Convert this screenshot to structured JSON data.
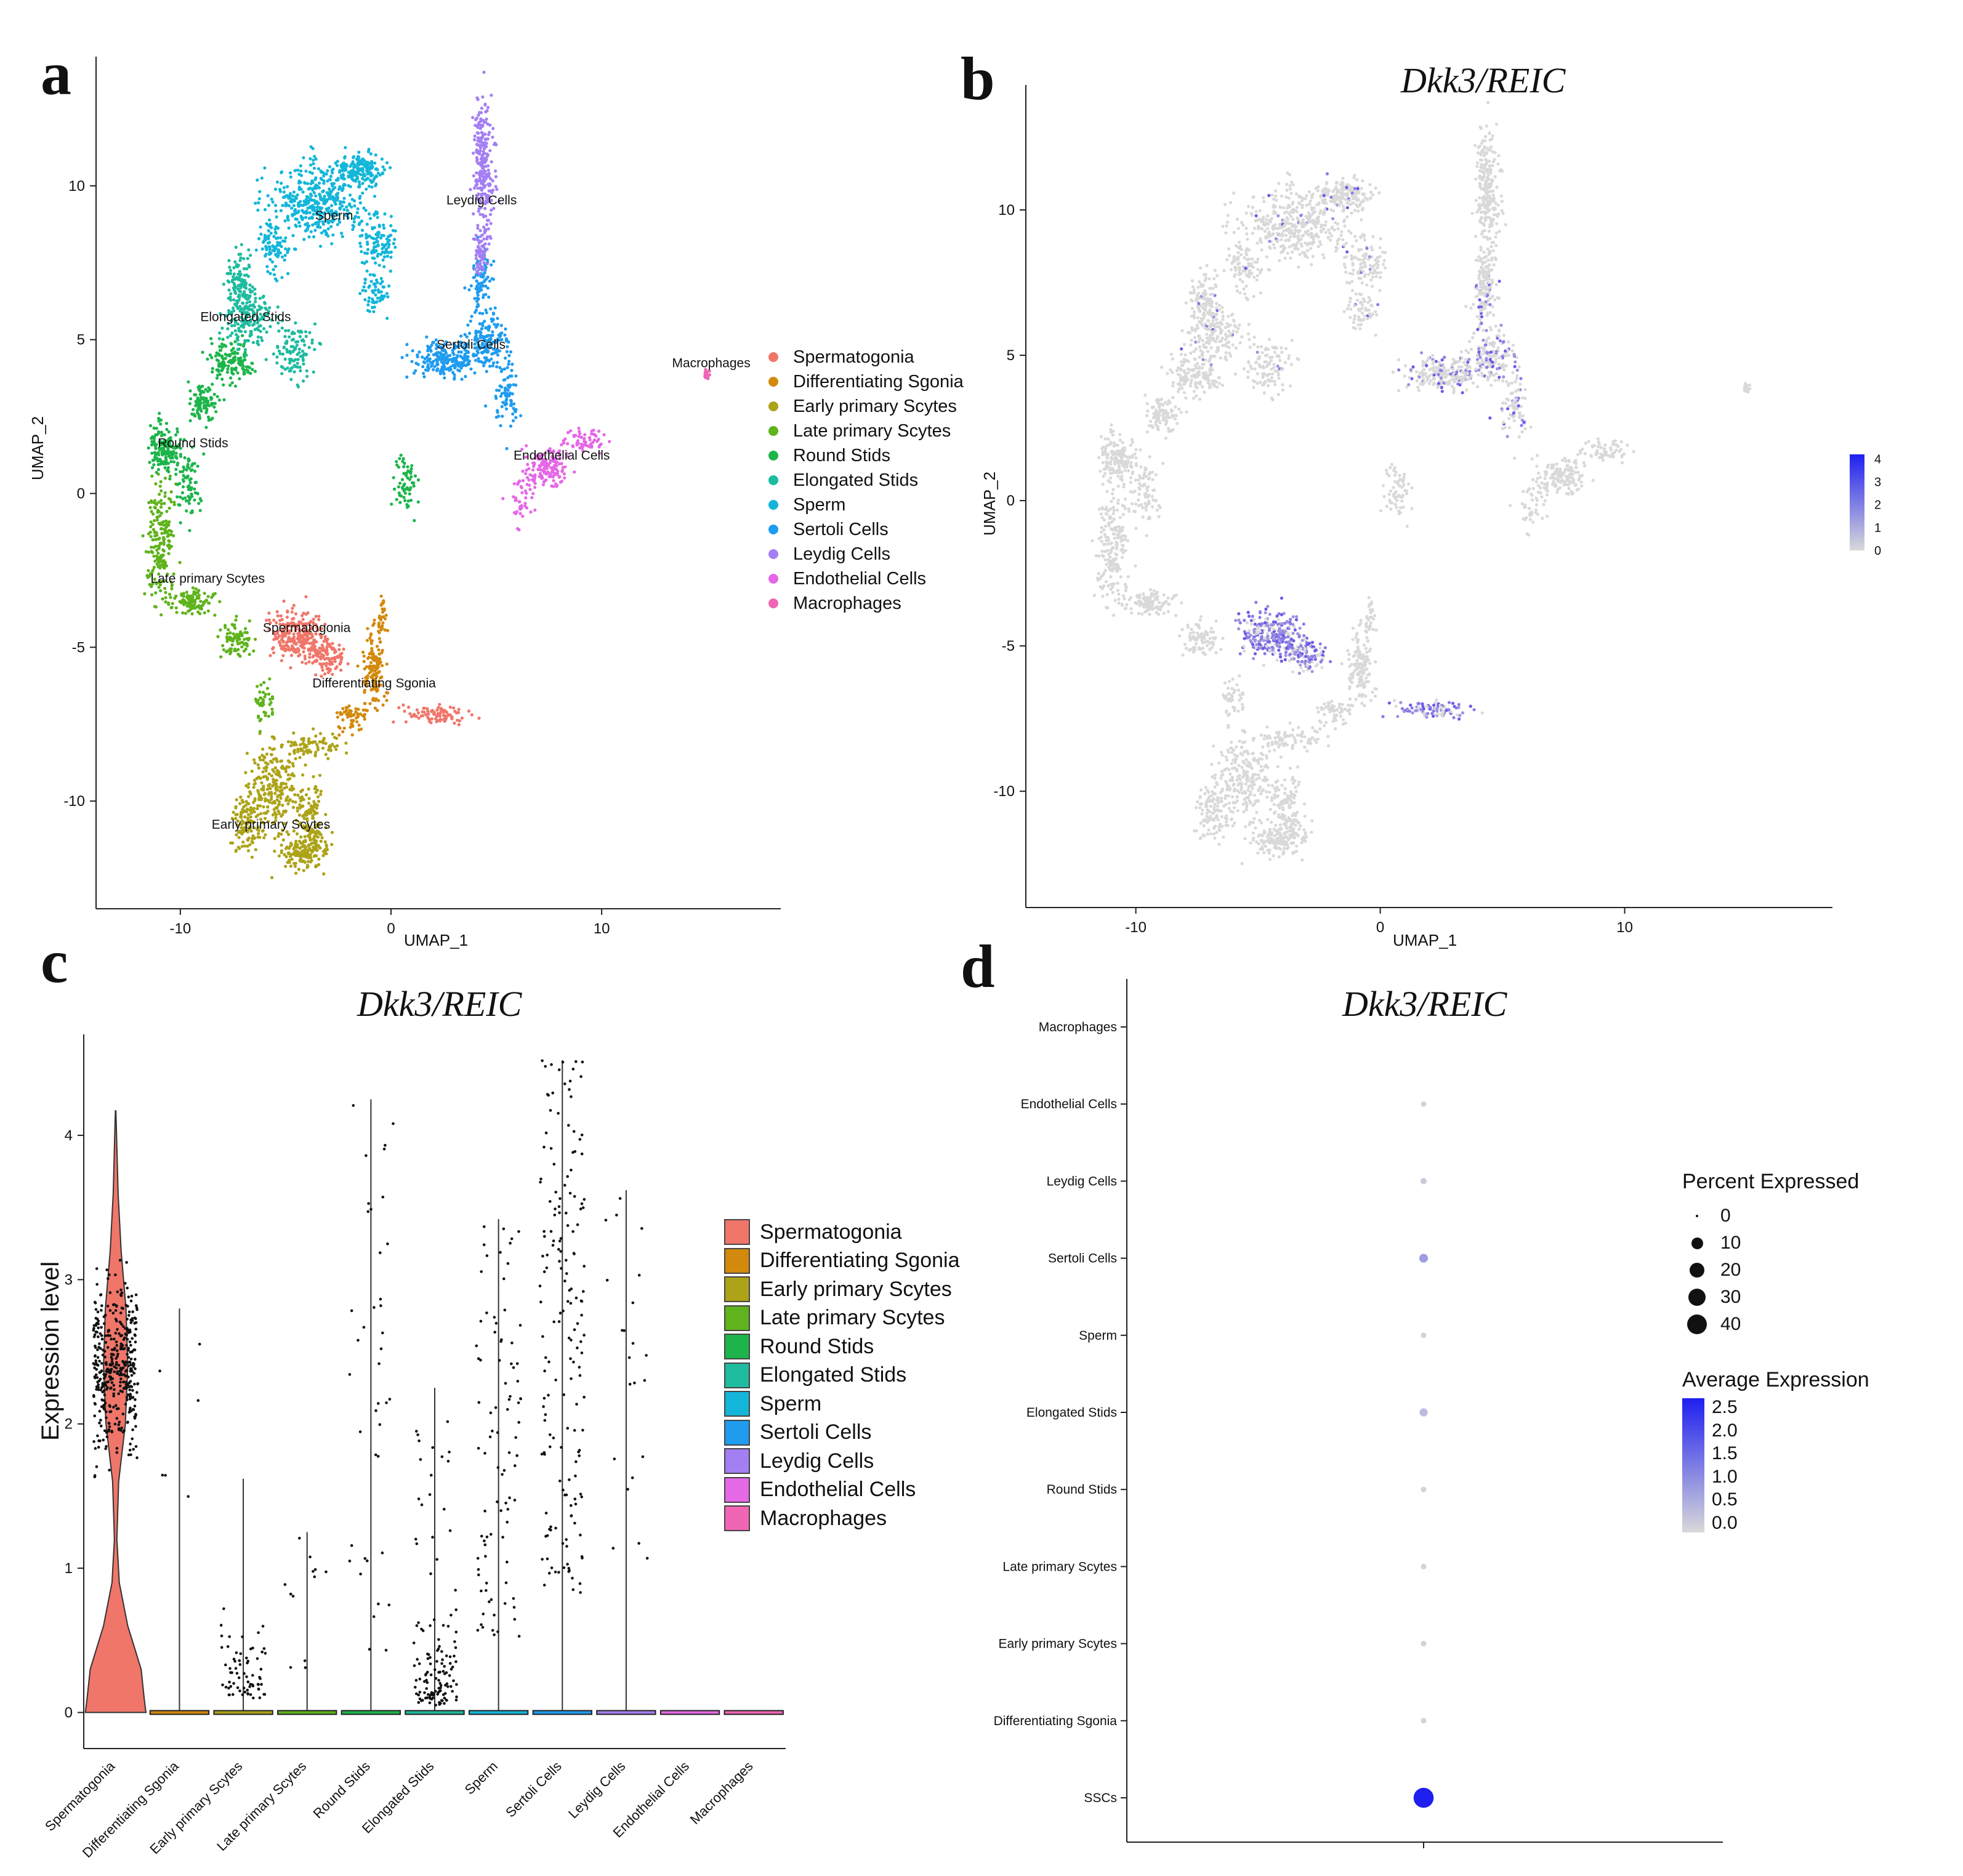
{
  "figure": {
    "panels": {
      "a": {
        "letter": "a"
      },
      "b": {
        "letter": "b",
        "title": "Dkk3/REIC"
      },
      "c": {
        "letter": "c",
        "title": "Dkk3/REIC"
      },
      "d": {
        "letter": "d",
        "title": "Dkk3/REIC"
      }
    }
  },
  "colors": {
    "Spermatogonia": "#F0766A",
    "Differentiating Sgonia": "#D3890C",
    "Early primary Scytes": "#ACA318",
    "Late primary Scytes": "#5FB31C",
    "Round Stids": "#1DB54B",
    "Elongated Stids": "#1EBB9F",
    "Sperm": "#13B6D9",
    "Sertoli Cells": "#1F9CEF",
    "Leydig Cells": "#A47FF3",
    "Endothelial Cells": "#E568E6",
    "Macrophages": "#F065B4",
    "expr_low": "#D9D9D9",
    "expr_high": "#1F1FF0"
  },
  "chart_data": [
    {
      "panel": "a",
      "type": "scatter",
      "title": "",
      "xlabel": "UMAP_1",
      "ylabel": "UMAP_2",
      "xlim": [
        -14,
        18.5
      ],
      "ylim": [
        -13.5,
        14.2
      ],
      "xticks": [
        -10,
        0,
        10
      ],
      "yticks": [
        -10,
        -5,
        0,
        5,
        10
      ],
      "cluster_labels": [
        {
          "label": "Spermatogonia",
          "x": -4,
          "y": -4.5
        },
        {
          "label": "Differentiating Sgonia",
          "x": -0.8,
          "y": -6.3
        },
        {
          "label": "Early primary Scytes",
          "x": -5.7,
          "y": -10.9
        },
        {
          "label": "Late primary Scytes",
          "x": -8.7,
          "y": -2.9
        },
        {
          "label": "Round Stids",
          "x": -9.4,
          "y": 1.5
        },
        {
          "label": "Elongated Stids",
          "x": -6.9,
          "y": 5.6
        },
        {
          "label": "Sperm",
          "x": -2.7,
          "y": 8.9
        },
        {
          "label": "Sertoli Cells",
          "x": 3.8,
          "y": 4.7
        },
        {
          "label": "Leydig Cells",
          "x": 4.3,
          "y": 9.4
        },
        {
          "label": "Endothelial Cells",
          "x": 8.1,
          "y": 1.1
        },
        {
          "label": "Macrophages",
          "x": 15.2,
          "y": 4.1
        }
      ],
      "legend": [
        "Spermatogonia",
        "Differentiating Sgonia",
        "Early primary Scytes",
        "Late primary Scytes",
        "Round Stids",
        "Elongated Stids",
        "Sperm",
        "Sertoli Cells",
        "Leydig Cells",
        "Endothelial Cells",
        "Macrophages"
      ]
    },
    {
      "panel": "b",
      "type": "scatter",
      "title": "Dkk3/REIC",
      "xlabel": "UMAP_1",
      "ylabel": "UMAP_2",
      "xlim": [
        -14.5,
        18.5
      ],
      "ylim": [
        -14,
        14.3
      ],
      "xticks": [
        -10,
        0,
        10
      ],
      "yticks": [
        -10,
        -5,
        0,
        5,
        10
      ],
      "colorbar": {
        "ticks": [
          0,
          1,
          2,
          3,
          4
        ],
        "min": 0,
        "max": 4.2
      }
    },
    {
      "panel": "c",
      "type": "violin",
      "title": "Dkk3/REIC",
      "xlabel": "",
      "ylabel": "Expression level",
      "ylim": [
        -0.25,
        4.7
      ],
      "yticks": [
        0,
        1,
        2,
        3,
        4
      ],
      "categories": [
        "Spermatogonia",
        "Differentiating Sgonia",
        "Early primary Scytes",
        "Late primary Scytes",
        "Round Stids",
        "Elongated Stids",
        "Sperm",
        "Sertoli Cells",
        "Leydig Cells",
        "Endothelial Cells",
        "Macrophages"
      ],
      "max_values": [
        4.17,
        2.8,
        1.62,
        1.25,
        4.25,
        2.25,
        3.42,
        4.52,
        3.62,
        0,
        0
      ],
      "legend": [
        "Spermatogonia",
        "Differentiating Sgonia",
        "Early primary Scytes",
        "Late primary Scytes",
        "Round Stids",
        "Elongated Stids",
        "Sperm",
        "Sertoli Cells",
        "Leydig Cells",
        "Endothelial Cells",
        "Macrophages"
      ]
    },
    {
      "panel": "d",
      "type": "dotplot",
      "title": "Dkk3/REIC",
      "categories": [
        "Macrophages",
        "Endothelial Cells",
        "Leydig Cells",
        "Sertoli Cells",
        "Sperm",
        "Elongated Stids",
        "Round Stids",
        "Late primary Scytes",
        "Early primary Scytes",
        "Differentiating Sgonia",
        "SSCs"
      ],
      "percent_expressed": [
        0,
        0.5,
        1,
        4,
        0.5,
        3,
        0.5,
        0.5,
        0.5,
        0.5,
        42
      ],
      "avg_expression": [
        0,
        0.1,
        0.2,
        0.8,
        0.1,
        0.4,
        0.1,
        0.1,
        0.1,
        0.1,
        2.5
      ],
      "size_legend": {
        "title": "Percent Expressed",
        "values": [
          0,
          10,
          20,
          30,
          40
        ]
      },
      "color_legend": {
        "title": "Average Expression",
        "ticks": [
          "2.5",
          "2.0",
          "1.5",
          "1.0",
          "0.5",
          "0.0"
        ]
      }
    }
  ]
}
